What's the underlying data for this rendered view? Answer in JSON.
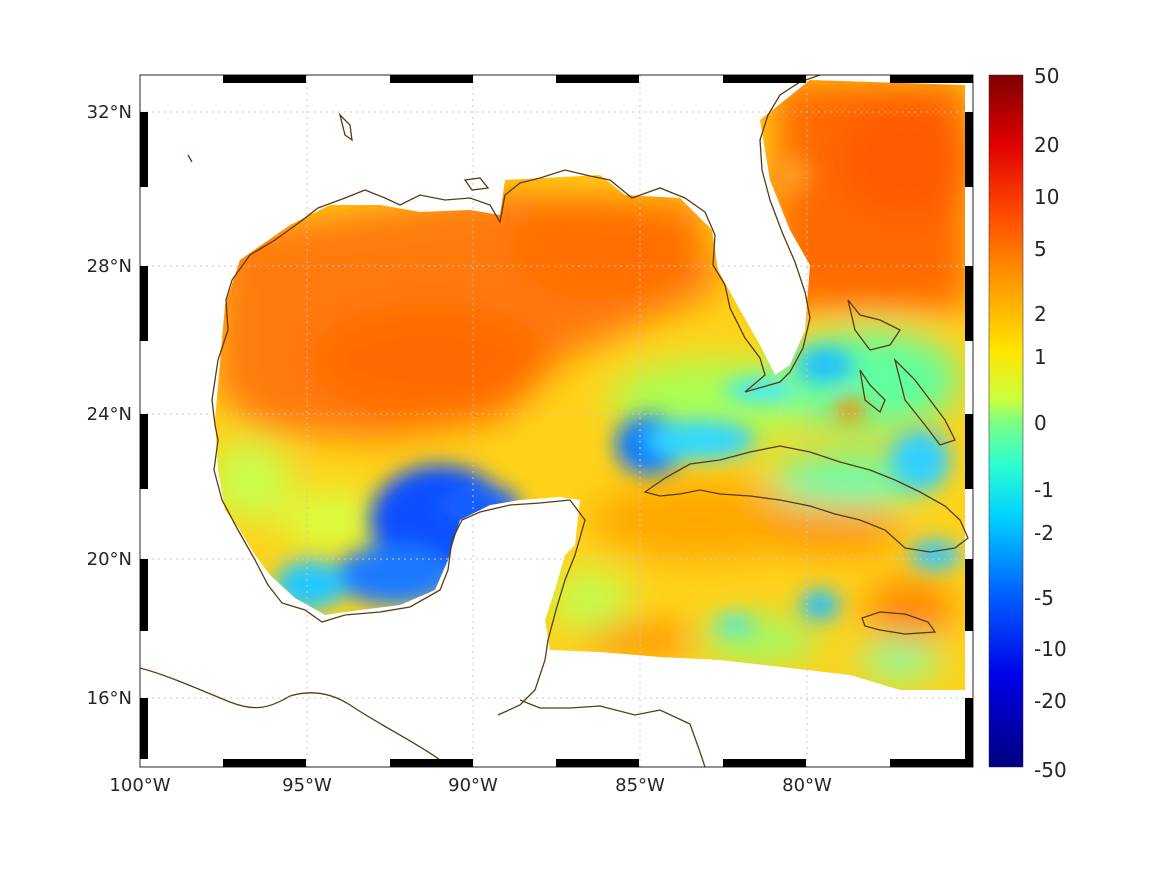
{
  "map": {
    "lon_ticks": [
      "100°W",
      "95°W",
      "90°W",
      "85°W",
      "80°W"
    ],
    "lat_ticks": [
      "32°N",
      "28°N",
      "24°N",
      "20°N",
      "16°N"
    ],
    "lon_range": [
      -100,
      -75
    ],
    "lat_range": [
      14.5,
      33
    ],
    "grid": true,
    "colormap": "jet",
    "colorbar": {
      "labels": [
        "50",
        "20",
        "10",
        "5",
        "2",
        "1",
        "0",
        "-1",
        "-2",
        "-5",
        "-10",
        "-20",
        "-50"
      ],
      "range": [
        -50,
        50
      ],
      "scale": "symmetric-log"
    },
    "coastline_color": "#5a3c10",
    "regions": [
      "Gulf of Mexico",
      "Caribbean Sea",
      "Florida",
      "Cuba",
      "Yucatan Peninsula",
      "Jamaica",
      "Bahamas"
    ]
  }
}
